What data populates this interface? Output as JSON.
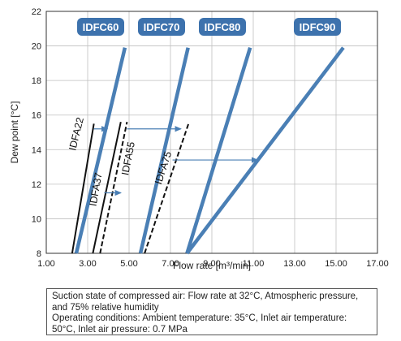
{
  "chart_data": {
    "type": "line",
    "xlabel": "Flow rate [m³/min]",
    "ylabel": "Dew point [°C]",
    "xlim": [
      1.0,
      17.0
    ],
    "ylim": [
      8,
      22
    ],
    "x_ticks": [
      "1.00",
      "3.00",
      "5.00",
      "7.00",
      "9.00",
      "11.00",
      "13.00",
      "15.00",
      "17.00"
    ],
    "y_ticks": [
      "8",
      "10",
      "12",
      "14",
      "16",
      "18",
      "20",
      "22"
    ],
    "grid": true,
    "series": [
      {
        "name": "IDFA22",
        "style": "solid",
        "color": "#111111",
        "points": [
          [
            2.25,
            8
          ],
          [
            3.3,
            15.5
          ]
        ]
      },
      {
        "name": "IDFA37",
        "style": "solid",
        "color": "#111111",
        "points": [
          [
            3.25,
            8
          ],
          [
            4.6,
            15.6
          ]
        ]
      },
      {
        "name": "IDFA55",
        "style": "dashed",
        "color": "#111111",
        "points": [
          [
            3.6,
            8
          ],
          [
            4.9,
            15.6
          ]
        ]
      },
      {
        "name": "IDFA75",
        "style": "dashed",
        "color": "#111111",
        "points": [
          [
            5.75,
            8
          ],
          [
            7.9,
            15.6
          ]
        ]
      },
      {
        "name": "IDFC60",
        "style": "solid",
        "color": "#4a7fb5",
        "points": [
          [
            2.45,
            8
          ],
          [
            4.8,
            19.9
          ]
        ]
      },
      {
        "name": "IDFC70",
        "style": "solid",
        "color": "#4a7fb5",
        "points": [
          [
            5.55,
            8
          ],
          [
            7.85,
            19.9
          ]
        ]
      },
      {
        "name": "IDFC80",
        "style": "solid",
        "color": "#4a7fb5",
        "points": [
          [
            7.8,
            8
          ],
          [
            10.85,
            19.9
          ]
        ]
      },
      {
        "name": "IDFC90",
        "style": "solid",
        "color": "#4a7fb5",
        "points": [
          [
            7.8,
            8
          ],
          [
            15.35,
            19.9
          ]
        ]
      }
    ],
    "arrows": [
      {
        "from": [
          3.3,
          15.2
        ],
        "to": [
          3.95,
          15.2
        ]
      },
      {
        "from": [
          4.9,
          15.2
        ],
        "to": [
          7.5,
          15.2
        ]
      },
      {
        "from": [
          3.8,
          11.5
        ],
        "to": [
          4.6,
          11.5
        ]
      },
      {
        "from": [
          7.1,
          13.4
        ],
        "to": [
          11.2,
          13.4
        ]
      }
    ]
  },
  "notes": {
    "line1": "Suction state of compressed air: Flow rate at 32°C, Atmospheric pressure, and 75% relative humidity",
    "line2": "Operating conditions: Ambient temperature: 35°C, Inlet air temperature: 50°C, Inlet air pressure: 0.7 MPa"
  },
  "colors": {
    "blue": "#4a7fb5",
    "badge": "#3d72ad",
    "arrow": "#4a7fb5",
    "grid": "#bfbfbf"
  }
}
